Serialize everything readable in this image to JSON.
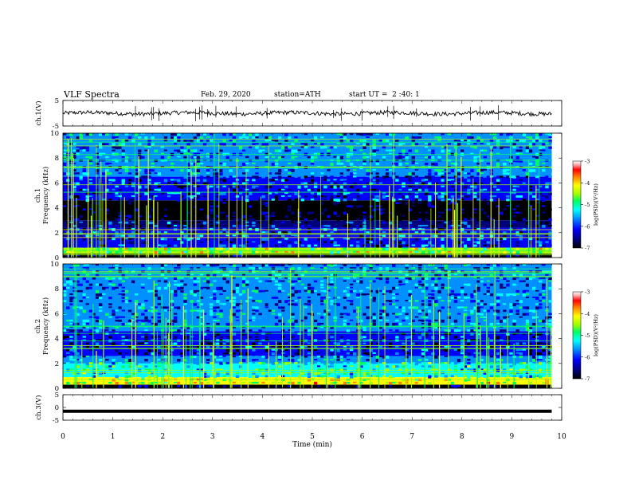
{
  "header": {
    "title": "VLF Spectra",
    "date": "Feb. 29, 2020",
    "station": "station=ATH",
    "start_ut": "start UT =  2 :40: 1"
  },
  "chart_data": [
    {
      "type": "line",
      "name": "ch1-waveform",
      "ylabel": "ch.1(V)",
      "ylim": [
        -5,
        5
      ],
      "yticks": [
        "5",
        "-5"
      ],
      "xlim": [
        0,
        10
      ],
      "data_extent_min": 9.8,
      "baseline": 0
    },
    {
      "type": "heatmap",
      "name": "ch1-spectrogram",
      "ylabel": [
        "ch.1",
        "Frequency (kHz)"
      ],
      "ylim": [
        0,
        10
      ],
      "yticks": [
        "0",
        "2",
        "4",
        "6",
        "8",
        "10"
      ],
      "xlim": [
        0,
        10
      ],
      "data_extent_min": 9.8,
      "colorbar": {
        "label": "log(PSD)(V²/Hz)",
        "ticks": [
          "-3",
          "-4",
          "-5",
          "-6",
          "-7"
        ],
        "range": [
          -7,
          -3
        ]
      },
      "bands": [
        {
          "f0": 0.0,
          "f1": 0.3,
          "level": -6.9
        },
        {
          "f0": 0.3,
          "f1": 0.8,
          "level": -4.8
        },
        {
          "f0": 0.8,
          "f1": 2.4,
          "level": -6.2
        },
        {
          "f0": 2.4,
          "f1": 3.0,
          "level": -6.5
        },
        {
          "f0": 3.0,
          "f1": 4.6,
          "level": -6.95
        },
        {
          "f0": 4.6,
          "f1": 6.5,
          "level": -6.2
        },
        {
          "f0": 6.5,
          "f1": 10.0,
          "level": -5.9
        }
      ]
    },
    {
      "type": "heatmap",
      "name": "ch2-spectrogram",
      "ylabel": [
        "ch.2",
        "Frequency (kHz)"
      ],
      "ylim": [
        0,
        10
      ],
      "yticks": [
        "0",
        "2",
        "4",
        "6",
        "8",
        "10"
      ],
      "xlim": [
        0,
        10
      ],
      "data_extent_min": 9.8,
      "colorbar": {
        "label": "log(PSD)(V²/Hz)",
        "ticks": [
          "-3",
          "-4",
          "-5",
          "-6",
          "-7"
        ],
        "range": [
          -7,
          -3
        ]
      },
      "bands": [
        {
          "f0": 0.0,
          "f1": 0.3,
          "level": -6.9
        },
        {
          "f0": 0.3,
          "f1": 0.9,
          "level": -4.6
        },
        {
          "f0": 0.9,
          "f1": 2.0,
          "level": -5.4
        },
        {
          "f0": 2.0,
          "f1": 2.6,
          "level": -6.0
        },
        {
          "f0": 2.6,
          "f1": 4.6,
          "level": -6.4
        },
        {
          "f0": 4.6,
          "f1": 10.0,
          "level": -6.0
        }
      ]
    },
    {
      "type": "line",
      "name": "ch3-waveform",
      "ylabel": "ch.3(V)",
      "ylim": [
        -5,
        5
      ],
      "yticks": [
        "5",
        "0",
        "-5"
      ],
      "xlim": [
        0,
        10
      ],
      "data_extent_min": 9.8,
      "baseline": -1.5
    }
  ],
  "xaxis": {
    "label": "Time (min)",
    "ticks": [
      "0",
      "1",
      "2",
      "3",
      "4",
      "5",
      "6",
      "7",
      "8",
      "9",
      "10"
    ]
  },
  "colors": {
    "axis": "#000000",
    "colormap": [
      "#000000",
      "#00007a",
      "#0000ff",
      "#0090ff",
      "#00ffff",
      "#00ff60",
      "#a0ff00",
      "#ffff00",
      "#ff8000",
      "#ff0000",
      "#ffb0b0",
      "#ffffff"
    ]
  }
}
